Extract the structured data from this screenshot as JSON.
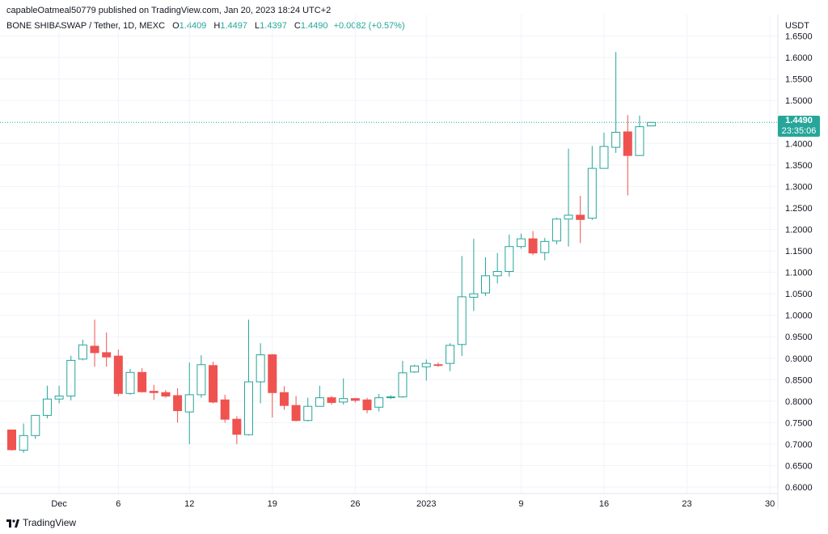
{
  "header": {
    "published_line": "capableOatmeal50779 published on TradingView.com, Jan 20, 2023 18:24 UTC+2"
  },
  "legend": {
    "symbol": "BONE SHIBASWAP / Tether, 1D, MEXC",
    "open_label": "O",
    "open_value": "1.4409",
    "high_label": "H",
    "high_value": "1.4497",
    "low_label": "L",
    "low_value": "1.4397",
    "close_label": "C",
    "close_value": "1.4490",
    "change": "+0.0082 (+0.57%)"
  },
  "price_axis": {
    "currency": "USDT",
    "ticks": [
      "1.6500",
      "1.6000",
      "1.5500",
      "1.5000",
      "1.4000",
      "1.3500",
      "1.3000",
      "1.2500",
      "1.2000",
      "1.1500",
      "1.1000",
      "1.0500",
      "1.0000",
      "0.9500",
      "0.9000",
      "0.8500",
      "0.8000",
      "0.7500",
      "0.7000",
      "0.6500",
      "0.6000"
    ]
  },
  "last_price": {
    "price": "1.4490",
    "countdown": "23:35:06"
  },
  "time_axis": {
    "ticks": [
      "Dec",
      "6",
      "12",
      "19",
      "26",
      "2023",
      "9",
      "16",
      "23",
      "30"
    ]
  },
  "footer": {
    "brand": "TradingView"
  },
  "colors": {
    "up": "#26a69a",
    "down": "#ef5350",
    "grid": "#f0f3fa",
    "text": "#131722"
  },
  "chart_data": {
    "type": "candlestick",
    "title": "BONE SHIBASWAP / Tether, 1D, MEXC",
    "xlabel": "",
    "ylabel": "USDT",
    "ylim": [
      0.585,
      1.685
    ],
    "grid": true,
    "candles": [
      {
        "date": "2022-11-27",
        "o": 0.733,
        "h": 0.733,
        "l": 0.685,
        "c": 0.687
      },
      {
        "date": "2022-11-28",
        "o": 0.686,
        "h": 0.748,
        "l": 0.68,
        "c": 0.72
      },
      {
        "date": "2022-11-29",
        "o": 0.72,
        "h": 0.768,
        "l": 0.712,
        "c": 0.767
      },
      {
        "date": "2022-11-30",
        "o": 0.767,
        "h": 0.836,
        "l": 0.76,
        "c": 0.805
      },
      {
        "date": "2022-12-01",
        "o": 0.805,
        "h": 0.836,
        "l": 0.795,
        "c": 0.812
      },
      {
        "date": "2022-12-02",
        "o": 0.812,
        "h": 0.906,
        "l": 0.802,
        "c": 0.895
      },
      {
        "date": "2022-12-03",
        "o": 0.898,
        "h": 0.943,
        "l": 0.895,
        "c": 0.931
      },
      {
        "date": "2022-12-04",
        "o": 0.928,
        "h": 0.99,
        "l": 0.88,
        "c": 0.913
      },
      {
        "date": "2022-12-05",
        "o": 0.913,
        "h": 0.96,
        "l": 0.88,
        "c": 0.903
      },
      {
        "date": "2022-12-06",
        "o": 0.905,
        "h": 0.92,
        "l": 0.812,
        "c": 0.818
      },
      {
        "date": "2022-12-07",
        "o": 0.818,
        "h": 0.875,
        "l": 0.815,
        "c": 0.867
      },
      {
        "date": "2022-12-08",
        "o": 0.867,
        "h": 0.877,
        "l": 0.82,
        "c": 0.822
      },
      {
        "date": "2022-12-09",
        "o": 0.823,
        "h": 0.838,
        "l": 0.803,
        "c": 0.82
      },
      {
        "date": "2022-12-10",
        "o": 0.82,
        "h": 0.826,
        "l": 0.808,
        "c": 0.812
      },
      {
        "date": "2022-12-11",
        "o": 0.813,
        "h": 0.83,
        "l": 0.75,
        "c": 0.778
      },
      {
        "date": "2022-12-12",
        "o": 0.775,
        "h": 0.89,
        "l": 0.7,
        "c": 0.815
      },
      {
        "date": "2022-12-13",
        "o": 0.815,
        "h": 0.907,
        "l": 0.808,
        "c": 0.885
      },
      {
        "date": "2022-12-14",
        "o": 0.883,
        "h": 0.892,
        "l": 0.795,
        "c": 0.798
      },
      {
        "date": "2022-12-15",
        "o": 0.803,
        "h": 0.815,
        "l": 0.75,
        "c": 0.758
      },
      {
        "date": "2022-12-16",
        "o": 0.758,
        "h": 0.765,
        "l": 0.7,
        "c": 0.723
      },
      {
        "date": "2022-12-17",
        "o": 0.722,
        "h": 0.99,
        "l": 0.72,
        "c": 0.845
      },
      {
        "date": "2022-12-18",
        "o": 0.845,
        "h": 0.935,
        "l": 0.795,
        "c": 0.908
      },
      {
        "date": "2022-12-19",
        "o": 0.908,
        "h": 0.91,
        "l": 0.762,
        "c": 0.82
      },
      {
        "date": "2022-12-20",
        "o": 0.82,
        "h": 0.835,
        "l": 0.78,
        "c": 0.79
      },
      {
        "date": "2022-12-21",
        "o": 0.79,
        "h": 0.812,
        "l": 0.753,
        "c": 0.755
      },
      {
        "date": "2022-12-22",
        "o": 0.755,
        "h": 0.808,
        "l": 0.753,
        "c": 0.788
      },
      {
        "date": "2022-12-23",
        "o": 0.788,
        "h": 0.836,
        "l": 0.788,
        "c": 0.808
      },
      {
        "date": "2022-12-24",
        "o": 0.808,
        "h": 0.812,
        "l": 0.792,
        "c": 0.797
      },
      {
        "date": "2022-12-25",
        "o": 0.798,
        "h": 0.853,
        "l": 0.792,
        "c": 0.806
      },
      {
        "date": "2022-12-26",
        "o": 0.806,
        "h": 0.808,
        "l": 0.797,
        "c": 0.802
      },
      {
        "date": "2022-12-27",
        "o": 0.803,
        "h": 0.808,
        "l": 0.772,
        "c": 0.78
      },
      {
        "date": "2022-12-28",
        "o": 0.786,
        "h": 0.817,
        "l": 0.776,
        "c": 0.808
      },
      {
        "date": "2022-12-29",
        "o": 0.809,
        "h": 0.814,
        "l": 0.805,
        "c": 0.81
      },
      {
        "date": "2022-12-30",
        "o": 0.81,
        "h": 0.894,
        "l": 0.808,
        "c": 0.866
      },
      {
        "date": "2022-12-31",
        "o": 0.868,
        "h": 0.885,
        "l": 0.866,
        "c": 0.882
      },
      {
        "date": "2023-01-01",
        "o": 0.88,
        "h": 0.897,
        "l": 0.848,
        "c": 0.888
      },
      {
        "date": "2023-01-02",
        "o": 0.885,
        "h": 0.89,
        "l": 0.88,
        "c": 0.884
      },
      {
        "date": "2023-01-03",
        "o": 0.888,
        "h": 0.935,
        "l": 0.87,
        "c": 0.93
      },
      {
        "date": "2023-01-04",
        "o": 0.932,
        "h": 1.138,
        "l": 0.905,
        "c": 1.043
      },
      {
        "date": "2023-01-05",
        "o": 1.042,
        "h": 1.178,
        "l": 1.01,
        "c": 1.05
      },
      {
        "date": "2023-01-06",
        "o": 1.052,
        "h": 1.135,
        "l": 1.045,
        "c": 1.092
      },
      {
        "date": "2023-01-07",
        "o": 1.092,
        "h": 1.145,
        "l": 1.074,
        "c": 1.102
      },
      {
        "date": "2023-01-08",
        "o": 1.102,
        "h": 1.188,
        "l": 1.09,
        "c": 1.16
      },
      {
        "date": "2023-01-09",
        "o": 1.16,
        "h": 1.19,
        "l": 1.155,
        "c": 1.178
      },
      {
        "date": "2023-01-10",
        "o": 1.178,
        "h": 1.196,
        "l": 1.14,
        "c": 1.145
      },
      {
        "date": "2023-01-11",
        "o": 1.146,
        "h": 1.18,
        "l": 1.128,
        "c": 1.172
      },
      {
        "date": "2023-01-12",
        "o": 1.173,
        "h": 1.227,
        "l": 1.165,
        "c": 1.224
      },
      {
        "date": "2023-01-13",
        "o": 1.224,
        "h": 1.388,
        "l": 1.16,
        "c": 1.233
      },
      {
        "date": "2023-01-14",
        "o": 1.233,
        "h": 1.278,
        "l": 1.168,
        "c": 1.223
      },
      {
        "date": "2023-01-15",
        "o": 1.226,
        "h": 1.394,
        "l": 1.222,
        "c": 1.342
      },
      {
        "date": "2023-01-16",
        "o": 1.342,
        "h": 1.425,
        "l": 1.342,
        "c": 1.393
      },
      {
        "date": "2023-01-17",
        "o": 1.391,
        "h": 1.613,
        "l": 1.378,
        "c": 1.426
      },
      {
        "date": "2023-01-18",
        "o": 1.427,
        "h": 1.466,
        "l": 1.279,
        "c": 1.372
      },
      {
        "date": "2023-01-19",
        "o": 1.372,
        "h": 1.465,
        "l": 1.371,
        "c": 1.439
      },
      {
        "date": "2023-01-20",
        "o": 1.4409,
        "h": 1.4497,
        "l": 1.4397,
        "c": 1.449
      }
    ]
  }
}
